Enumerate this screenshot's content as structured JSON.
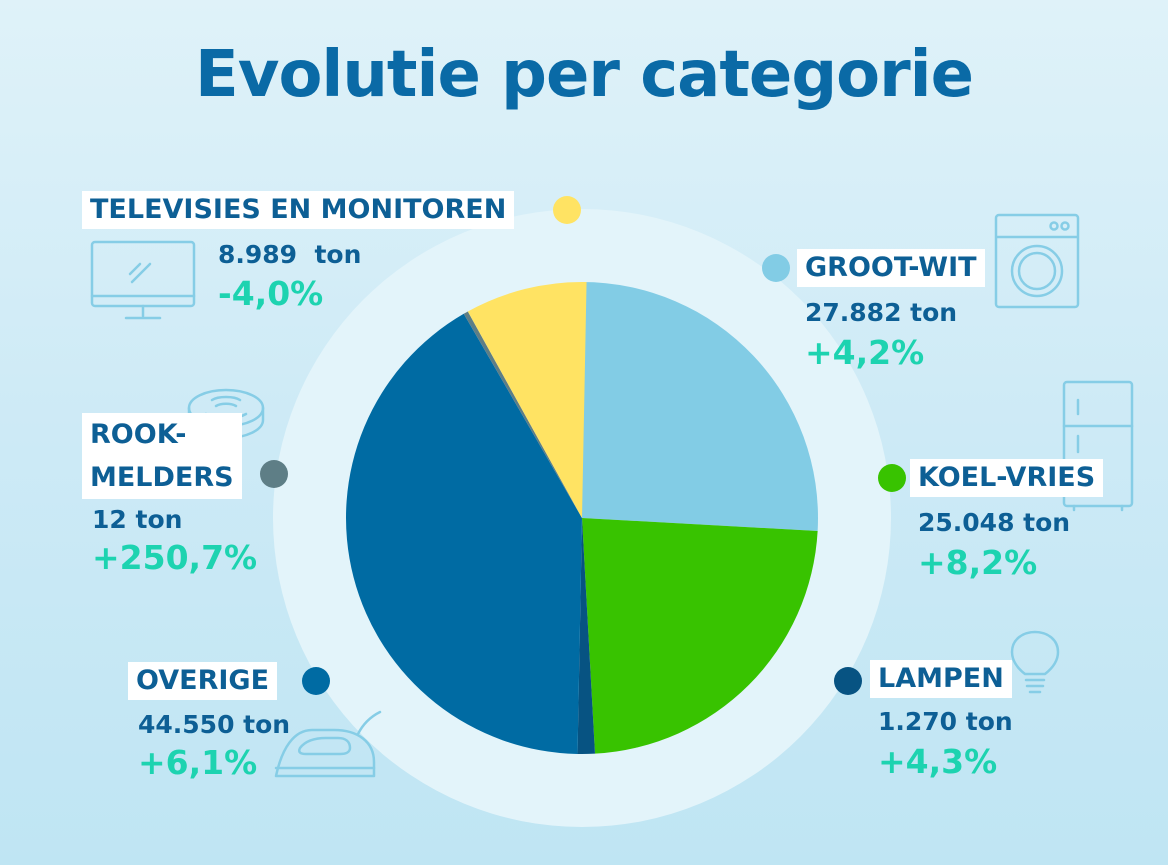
{
  "title": "Evolutie per categorie",
  "chart_data": {
    "type": "pie",
    "title": "Evolutie per categorie",
    "unit": "ton",
    "slices": [
      {
        "name": "GROOT-WIT",
        "value": 27882,
        "amount": "27.882 ton",
        "change": "+4,2%",
        "color": "#82cce5"
      },
      {
        "name": "KOEL-VRIES",
        "value": 25048,
        "amount": "25.048 ton",
        "change": "+8,2%",
        "color": "#38c300"
      },
      {
        "name": "LAMPEN",
        "value": 1270,
        "amount": "1.270 ton",
        "change": "+4,3%",
        "color": "#075382"
      },
      {
        "name": "OVERIGE",
        "value": 44550,
        "amount": "44.550 ton",
        "change": "+6,1%",
        "color": "#006ba3"
      },
      {
        "name": "ROOK-MELDERS",
        "value": 12,
        "amount": "12 ton",
        "change": "+250,7%",
        "color": "#5e7e86"
      },
      {
        "name": "TELEVISIES EN MONITOREN",
        "value": 8989,
        "amount": "8.989  ton",
        "change": "-4,0%",
        "color": "#ffe363"
      }
    ]
  },
  "labels": {
    "tv": {
      "name": "TELEVISIES EN MONITOREN",
      "amount": "8.989  ton",
      "change": "-4,0%",
      "icon": "monitor-icon"
    },
    "grootwit": {
      "name": "GROOT-WIT",
      "amount": "27.882 ton",
      "change": "+4,2%",
      "icon": "washing-machine-icon"
    },
    "koelvries": {
      "name": "KOEL-VRIES",
      "amount": "25.048 ton",
      "change": "+8,2%",
      "icon": "fridge-icon"
    },
    "lampen": {
      "name": "LAMPEN",
      "amount": "1.270 ton",
      "change": "+4,3%",
      "icon": "lightbulb-icon"
    },
    "overige": {
      "name": "OVERIGE",
      "amount": "44.550 ton",
      "change": "+6,1%",
      "icon": "iron-icon"
    },
    "rook": {
      "name_line1": "ROOK-",
      "name_line2": "MELDERS",
      "amount": "12 ton",
      "change": "+250,7%",
      "icon": "smoke-detector-icon"
    }
  }
}
